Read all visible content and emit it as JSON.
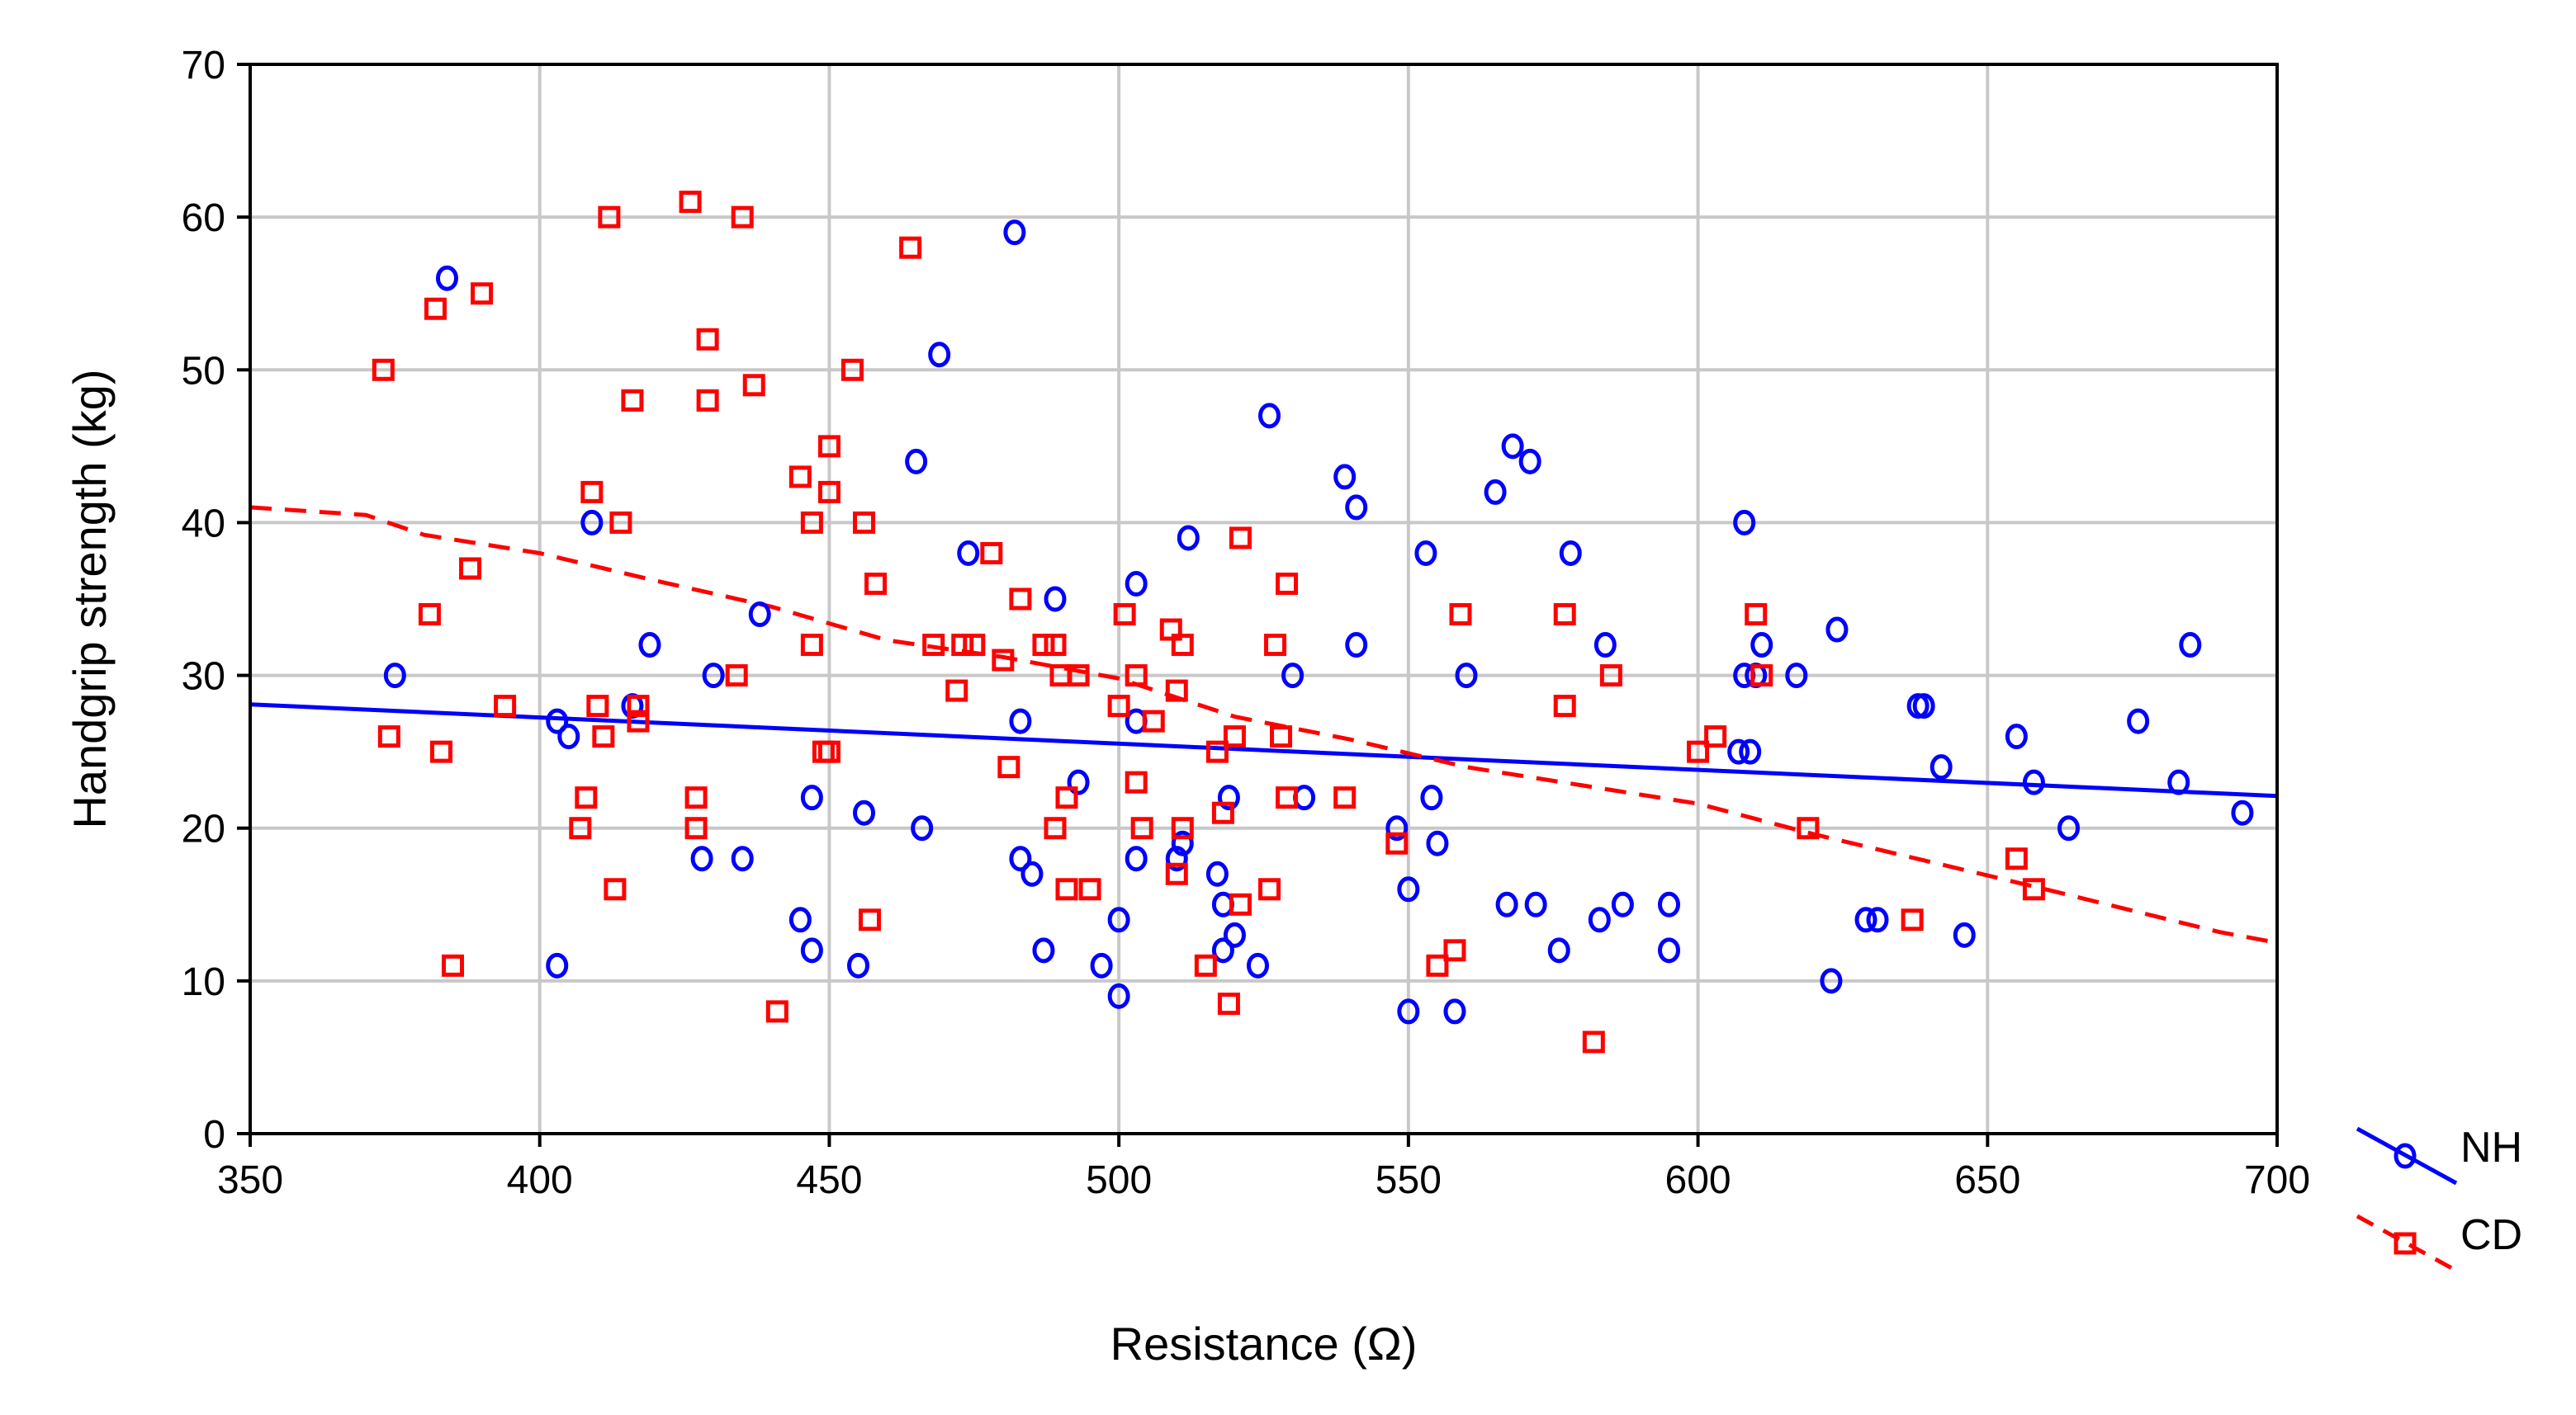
{
  "chart_data": {
    "type": "scatter",
    "title": "",
    "xlabel": "Resistance (Ω)",
    "ylabel": "Handgrip strength (kg)",
    "xlim": [
      350,
      700
    ],
    "ylim": [
      0,
      70
    ],
    "xticks": [
      "350",
      "400",
      "450",
      "500",
      "550",
      "600",
      "650",
      "700"
    ],
    "yticks": [
      "0",
      "10",
      "20",
      "30",
      "40",
      "50",
      "60",
      "70"
    ],
    "grid": true,
    "legend_position": "outside-bottom-right",
    "series": [
      {
        "name": "NH",
        "color": "#0000ff",
        "marker": "circle",
        "fit": {
          "style": "solid",
          "x": [
            350,
            700
          ],
          "y": [
            28.1,
            22.1
          ]
        },
        "points": [
          [
            384,
            56
          ],
          [
            409,
            40
          ],
          [
            375,
            30
          ],
          [
            403,
            27
          ],
          [
            405,
            26
          ],
          [
            416,
            28
          ],
          [
            419,
            32
          ],
          [
            403,
            11
          ],
          [
            428,
            18
          ],
          [
            430,
            30
          ],
          [
            435,
            18
          ],
          [
            438,
            34
          ],
          [
            445,
            14
          ],
          [
            447,
            12
          ],
          [
            447,
            22
          ],
          [
            455,
            11
          ],
          [
            456,
            21
          ],
          [
            465,
            44
          ],
          [
            466,
            20
          ],
          [
            469,
            51
          ],
          [
            474,
            38
          ],
          [
            482,
            59
          ],
          [
            483,
            27
          ],
          [
            483,
            18
          ],
          [
            485,
            17
          ],
          [
            487,
            12
          ],
          [
            489,
            35
          ],
          [
            493,
            23
          ],
          [
            497,
            11
          ],
          [
            500,
            14
          ],
          [
            500,
            9
          ],
          [
            503,
            36
          ],
          [
            503,
            27
          ],
          [
            503,
            18
          ],
          [
            510,
            18
          ],
          [
            511,
            19
          ],
          [
            512,
            39
          ],
          [
            517,
            17
          ],
          [
            518,
            15
          ],
          [
            518,
            12
          ],
          [
            519,
            22
          ],
          [
            520,
            13
          ],
          [
            524,
            11
          ],
          [
            526,
            47
          ],
          [
            530,
            30
          ],
          [
            532,
            22
          ],
          [
            539,
            43
          ],
          [
            541,
            41
          ],
          [
            541,
            32
          ],
          [
            548,
            20
          ],
          [
            550,
            16
          ],
          [
            550,
            8
          ],
          [
            553,
            38
          ],
          [
            554,
            22
          ],
          [
            555,
            19
          ],
          [
            558,
            8
          ],
          [
            560,
            30
          ],
          [
            565,
            42
          ],
          [
            567,
            15
          ],
          [
            568,
            45
          ],
          [
            571,
            44
          ],
          [
            572,
            15
          ],
          [
            576,
            12
          ],
          [
            578,
            38
          ],
          [
            583,
            14
          ],
          [
            584,
            32
          ],
          [
            587,
            15
          ],
          [
            595,
            15
          ],
          [
            595,
            12
          ],
          [
            607,
            25
          ],
          [
            608,
            40
          ],
          [
            608,
            30
          ],
          [
            609,
            25
          ],
          [
            610,
            30
          ],
          [
            611,
            32
          ],
          [
            617,
            30
          ],
          [
            623,
            10
          ],
          [
            624,
            33
          ],
          [
            629,
            14
          ],
          [
            631,
            14
          ],
          [
            638,
            28
          ],
          [
            639,
            28
          ],
          [
            642,
            24
          ],
          [
            646,
            13
          ],
          [
            655,
            26
          ],
          [
            658,
            23
          ],
          [
            664,
            20
          ],
          [
            676,
            27
          ],
          [
            683,
            23
          ],
          [
            685,
            32
          ],
          [
            694,
            21
          ]
        ]
      },
      {
        "name": "CD",
        "color": "#ff0000",
        "marker": "square",
        "fit": {
          "style": "dashed",
          "x": [
            350,
            370,
            380,
            400,
            420,
            440,
            460,
            480,
            500,
            520,
            540,
            560,
            580,
            600,
            620,
            640,
            660,
            690,
            700
          ],
          "y": [
            41,
            40.5,
            39.2,
            38,
            36.2,
            34.5,
            32.3,
            31.2,
            29.8,
            27.3,
            25.8,
            24,
            22.8,
            21.6,
            19.6,
            17.8,
            16,
            13.2,
            12.5
          ]
        },
        "points": [
          [
            373,
            50
          ],
          [
            374,
            26
          ],
          [
            381,
            34
          ],
          [
            382,
            54
          ],
          [
            383,
            25
          ],
          [
            385,
            11
          ],
          [
            388,
            37
          ],
          [
            390,
            55
          ],
          [
            394,
            28
          ],
          [
            407,
            20
          ],
          [
            408,
            22
          ],
          [
            409,
            42
          ],
          [
            410,
            28
          ],
          [
            411,
            26
          ],
          [
            412,
            60
          ],
          [
            413,
            16
          ],
          [
            414,
            40
          ],
          [
            416,
            48
          ],
          [
            417,
            27
          ],
          [
            417,
            28
          ],
          [
            426,
            61
          ],
          [
            427,
            22
          ],
          [
            427,
            20
          ],
          [
            429,
            52
          ],
          [
            429,
            48
          ],
          [
            434,
            30
          ],
          [
            435,
            60
          ],
          [
            437,
            49
          ],
          [
            441,
            8
          ],
          [
            445,
            43
          ],
          [
            447,
            40
          ],
          [
            447,
            32
          ],
          [
            449,
            25
          ],
          [
            450,
            25
          ],
          [
            450,
            45
          ],
          [
            450,
            42
          ],
          [
            454,
            50
          ],
          [
            456,
            40
          ],
          [
            457,
            14
          ],
          [
            458,
            36
          ],
          [
            464,
            58
          ],
          [
            468,
            32
          ],
          [
            472,
            29
          ],
          [
            473,
            32
          ],
          [
            475,
            32
          ],
          [
            478,
            38
          ],
          [
            480,
            31
          ],
          [
            481,
            24
          ],
          [
            483,
            35
          ],
          [
            487,
            32
          ],
          [
            489,
            20
          ],
          [
            489,
            32
          ],
          [
            490,
            30
          ],
          [
            491,
            22
          ],
          [
            491,
            16
          ],
          [
            493,
            30
          ],
          [
            495,
            16
          ],
          [
            500,
            28
          ],
          [
            501,
            34
          ],
          [
            503,
            30
          ],
          [
            503,
            23
          ],
          [
            504,
            20
          ],
          [
            506,
            27
          ],
          [
            509,
            33
          ],
          [
            510,
            17
          ],
          [
            510,
            29
          ],
          [
            511,
            32
          ],
          [
            511,
            20
          ],
          [
            515,
            11
          ],
          [
            517,
            25
          ],
          [
            518,
            21
          ],
          [
            519,
            8.5
          ],
          [
            520,
            26
          ],
          [
            521,
            39
          ],
          [
            521,
            15
          ],
          [
            526,
            16
          ],
          [
            527,
            32
          ],
          [
            528,
            26
          ],
          [
            529,
            22
          ],
          [
            529,
            36
          ],
          [
            539,
            22
          ],
          [
            548,
            19
          ],
          [
            555,
            11
          ],
          [
            558,
            12
          ],
          [
            559,
            34
          ],
          [
            577,
            34
          ],
          [
            577,
            28
          ],
          [
            582,
            6
          ],
          [
            585,
            30
          ],
          [
            600,
            25
          ],
          [
            603,
            26
          ],
          [
            610,
            34
          ],
          [
            611,
            30
          ],
          [
            619,
            20
          ],
          [
            637,
            14
          ],
          [
            655,
            18
          ],
          [
            658,
            16
          ]
        ]
      }
    ]
  }
}
